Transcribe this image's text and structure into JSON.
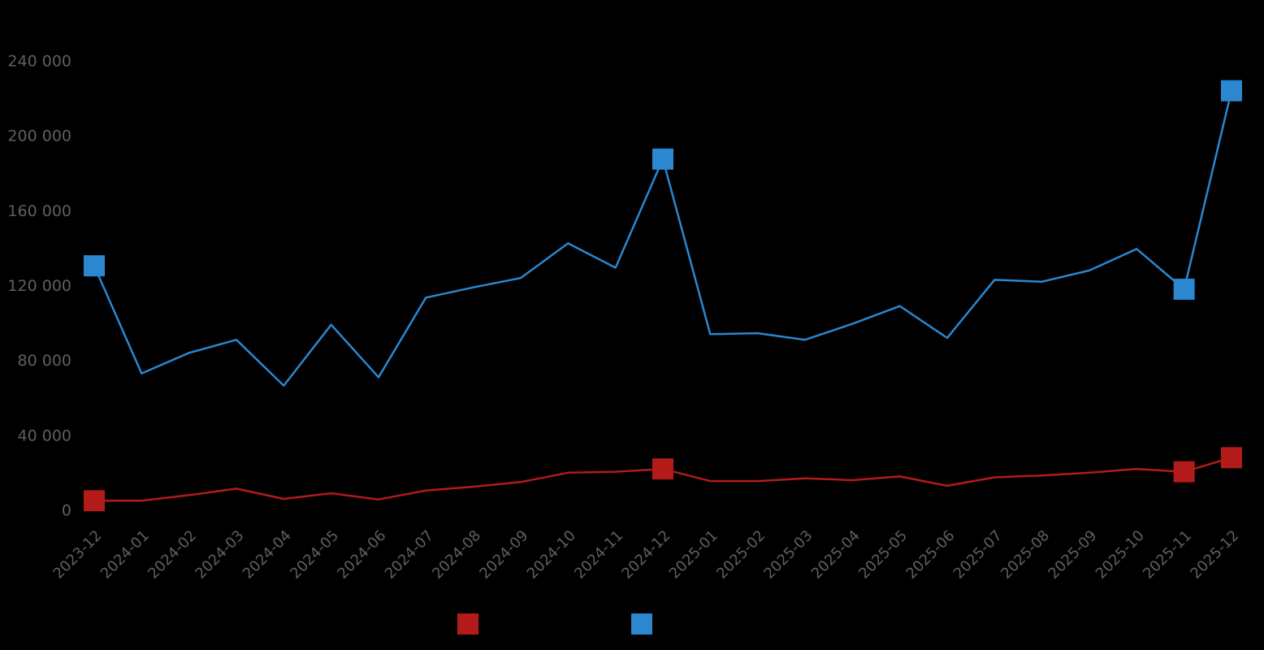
{
  "chart_data": {
    "type": "line",
    "title": "",
    "xlabel": "",
    "ylabel": "",
    "ylim": [
      0,
      240000
    ],
    "yticks": [
      0,
      40000,
      80000,
      120000,
      160000,
      200000,
      240000
    ],
    "ytick_labels": [
      "0",
      "40 000",
      "80 000",
      "120 000",
      "160 000",
      "200 000",
      "240 000"
    ],
    "grid": false,
    "legend_position": "bottom",
    "categories": [
      "2023-12",
      "2024-01",
      "2024-02",
      "2024-03",
      "2024-04",
      "2024-05",
      "2024-06",
      "2024-07",
      "2024-08",
      "2024-09",
      "2024-10",
      "2024-11",
      "2024-12",
      "2025-01",
      "2025-02",
      "2025-03",
      "2025-04",
      "2025-05",
      "2025-06",
      "2025-07",
      "2025-08",
      "2025-09",
      "2025-10",
      "2025-11",
      "2025-12"
    ],
    "series": [
      {
        "name": "",
        "color": "#b31b1b",
        "values": [
          5500,
          5500,
          8500,
          12000,
          6500,
          9500,
          6200,
          11000,
          13000,
          15500,
          20500,
          21000,
          22500,
          16000,
          16000,
          17500,
          16500,
          18500,
          13500,
          18000,
          19000,
          20500,
          22500,
          21000,
          28500
        ],
        "markers": [
          0,
          12,
          23,
          24
        ]
      },
      {
        "name": "",
        "color": "#2a87d0",
        "values": [
          131000,
          73500,
          84500,
          91500,
          67000,
          99500,
          71500,
          114000,
          119500,
          124500,
          143000,
          130000,
          188000,
          94500,
          95000,
          91500,
          100000,
          109500,
          92500,
          123500,
          122500,
          128500,
          140000,
          118500,
          224500
        ],
        "markers": [
          0,
          12,
          23,
          24
        ]
      }
    ]
  }
}
